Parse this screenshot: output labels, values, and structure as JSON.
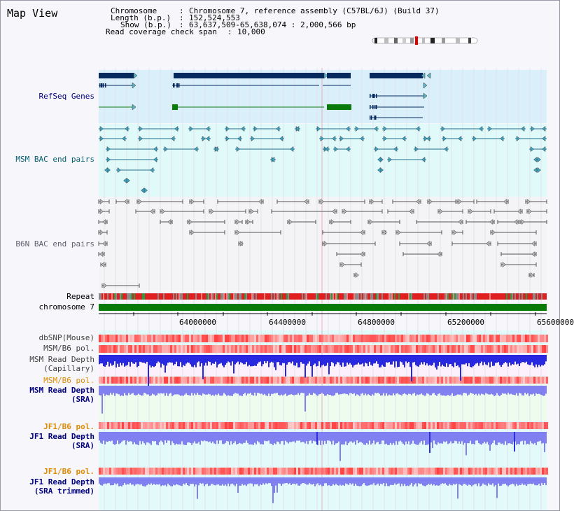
{
  "title": "Map View",
  "info": {
    "chromosome_key": "Chromosome",
    "chromosome_val": "Chromosome 7, reference assembly (C57BL/6J) (Build 37)",
    "length_key": "Length (b.p.)",
    "length_val": "152,524,553",
    "show_key": "Show (b.p.)",
    "show_val": "63,637,509-65,638,074 : 2,000,566 bp",
    "coverage_key": "Read coverage check span",
    "coverage_val": "10,000"
  },
  "tracks": {
    "refseq": "RefSeq Genes",
    "msm_bac": "MSM BAC end pairs",
    "b6n_bac": "B6N BAC end pairs",
    "repeat": "Repeat",
    "chromosome": "chromosome 7",
    "dbsnp": "dbSNP(Mouse)",
    "msm_pol": "MSM/B6 pol.",
    "msm_depth_cap_1": "MSM Read Depth",
    "msm_depth_cap_2": "(Capillary)",
    "msm_pol2": "MSM/B6 pol.",
    "msm_depth_sra_1": "MSM Read Depth",
    "msm_depth_sra_2": "(SRA)",
    "jf1_pol": "JF1/B6 pol.",
    "jf1_depth_1": "JF1 Read Depth",
    "jf1_depth_2": "(SRA)",
    "jf1_pol2": "JF1/B6 pol.",
    "jf1_trim_1": "JF1 Read Depth",
    "jf1_trim_2": "(SRA trimmed)"
  },
  "axis_ticks": [
    "64000000",
    "64400000",
    "64800000",
    "65200000",
    "65600000"
  ],
  "colors": {
    "gene_navy": "#062a5e",
    "gene_green": "#0a7a0a",
    "refseq_bg": "#d9eff9",
    "msm_bac_bg": "#e0f9f9",
    "bac_teal": "#1f6f8f",
    "b6n_gray": "#555555",
    "chrom_green": "#077a07",
    "pol_red": "#f05050",
    "depth_blue": "#2828e0",
    "depth_sra": "#8080f0",
    "label_navy": "#000080",
    "label_teal": "#006070",
    "label_orange": "#e08a00"
  }
}
